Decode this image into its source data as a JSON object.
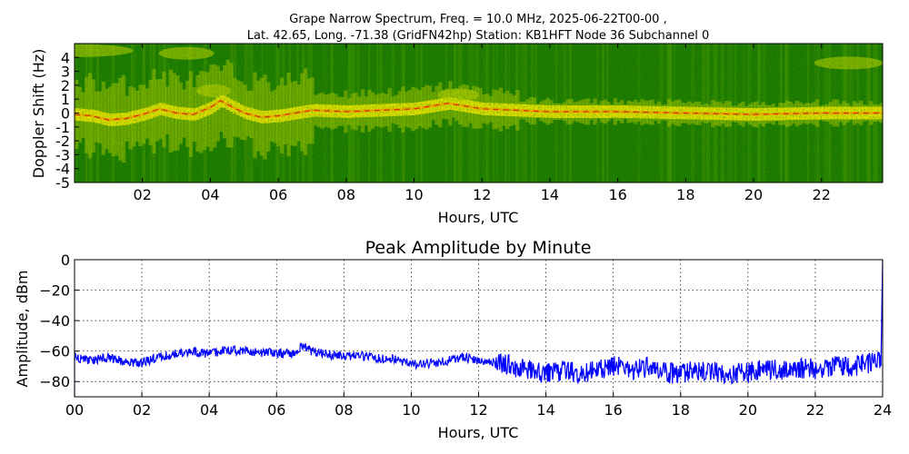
{
  "figure": {
    "title_line1": "Grape Narrow Spectrum, Freq. = 10.0 MHz, 2025-06-22T00-00 ,",
    "title_line2": "Lat.  42.65, Long. -71.38 (GridFN42hp) Station: KB1HFT Node 36 Subchannel 0"
  },
  "chart_data": [
    {
      "type": "heatmap",
      "title": "",
      "xlabel": "Hours, UTC",
      "ylabel": "Doppler Shift (Hz)",
      "xlim": [
        0,
        23.8
      ],
      "ylim": [
        -5,
        5
      ],
      "x_ticks": [
        2,
        4,
        6,
        8,
        10,
        12,
        14,
        16,
        18,
        20,
        22
      ],
      "x_tick_labels": [
        "02",
        "04",
        "06",
        "08",
        "10",
        "12",
        "14",
        "16",
        "18",
        "20",
        "22"
      ],
      "y_ticks": [
        4,
        3,
        2,
        1,
        0,
        -1,
        -2,
        -3,
        -4,
        -5
      ],
      "y_tick_labels": [
        "4",
        "3",
        "2",
        "1",
        "0",
        "-1",
        "-2",
        "-3",
        "-4",
        "-5"
      ],
      "colormap": [
        "#1a7a00",
        "#4a9a00",
        "#b8d000",
        "#f0e800",
        "#ff8c00",
        "#e01000"
      ],
      "carrier_trace": {
        "hours": [
          0.0,
          0.5,
          1.0,
          1.5,
          2.0,
          2.5,
          3.0,
          3.5,
          4.0,
          4.3,
          4.6,
          5.0,
          5.5,
          6.0,
          6.5,
          7.0,
          8.0,
          9.0,
          10.0,
          11.0,
          11.5,
          12.0,
          13.0,
          14.0,
          16.0,
          18.0,
          20.0,
          22.0,
          23.8
        ],
        "doppler": [
          -0.1,
          -0.2,
          -0.5,
          -0.4,
          -0.1,
          0.3,
          0.0,
          -0.1,
          0.4,
          0.9,
          0.5,
          0.0,
          -0.3,
          -0.2,
          0.0,
          0.2,
          0.1,
          0.2,
          0.3,
          0.7,
          0.5,
          0.3,
          0.2,
          0.1,
          0.1,
          0.0,
          -0.1,
          0.0,
          0.0
        ]
      }
    },
    {
      "type": "line",
      "title": "Peak Amplitude by Minute",
      "xlabel": "Hours, UTC",
      "ylabel": "Amplitude, dBm",
      "xlim": [
        0,
        24
      ],
      "ylim": [
        -90,
        0
      ],
      "grid": true,
      "x_ticks": [
        0,
        2,
        4,
        6,
        8,
        10,
        12,
        14,
        16,
        18,
        20,
        22,
        24
      ],
      "x_tick_labels": [
        "00",
        "02",
        "04",
        "06",
        "08",
        "10",
        "12",
        "14",
        "16",
        "18",
        "20",
        "22",
        "24"
      ],
      "y_ticks": [
        0,
        -20,
        -40,
        -60,
        -80
      ],
      "y_tick_labels": [
        "0",
        "−20",
        "−40",
        "−60",
        "−80"
      ],
      "series_color": "#0000ff",
      "series": [
        {
          "x": [
            0,
            0.5,
            1.0,
            1.5,
            2.0,
            2.5,
            3.0,
            3.5,
            4.0,
            4.5,
            5.0,
            5.5,
            6.0,
            6.5,
            6.8,
            7.0,
            7.5,
            8.0,
            8.5,
            9.0,
            9.5,
            10.0,
            10.5,
            11.0,
            11.5,
            12.0,
            12.5,
            13.0,
            13.5,
            14.0,
            14.5,
            15.0,
            15.5,
            16.0,
            16.5,
            17.0,
            17.5,
            18.0,
            18.5,
            19.0,
            19.5,
            20.0,
            20.5,
            21.0,
            21.5,
            22.0,
            22.5,
            23.0,
            23.5,
            23.95
          ],
          "values": [
            -64,
            -66,
            -64,
            -67,
            -68,
            -64,
            -62,
            -60,
            -62,
            -59,
            -60,
            -61,
            -61,
            -62,
            -56,
            -60,
            -62,
            -64,
            -63,
            -65,
            -65,
            -69,
            -68,
            -67,
            -64,
            -66,
            -67,
            -70,
            -73,
            -74,
            -73,
            -74,
            -73,
            -70,
            -72,
            -71,
            -74,
            -75,
            -73,
            -74,
            -75,
            -74,
            -72,
            -73,
            -71,
            -72,
            -70,
            -71,
            -68,
            -66
          ]
        }
      ]
    }
  ]
}
